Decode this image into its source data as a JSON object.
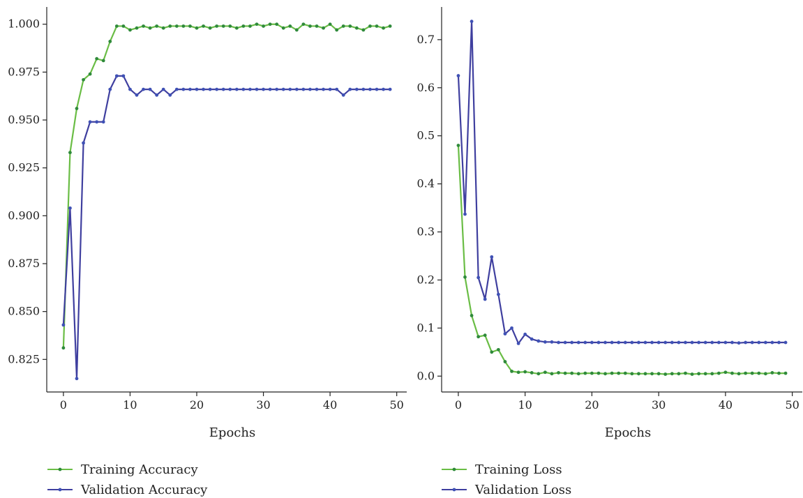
{
  "chart_data": [
    {
      "type": "line",
      "title": "",
      "xlabel": "Epochs",
      "ylabel": "",
      "xlim": [
        -2.5,
        51.5
      ],
      "ylim": [
        0.808,
        1.009
      ],
      "xticks": [
        0,
        10,
        20,
        30,
        40,
        50
      ],
      "yticks": [
        0.825,
        0.85,
        0.875,
        0.9,
        0.925,
        0.95,
        0.975,
        1.0
      ],
      "ytick_labels": [
        "0.825",
        "0.850",
        "0.875",
        "0.900",
        "0.925",
        "0.950",
        "0.975",
        "1.000"
      ],
      "grid": false,
      "legend": "bottom-left",
      "x": [
        0,
        1,
        2,
        3,
        4,
        5,
        6,
        7,
        8,
        9,
        10,
        11,
        12,
        13,
        14,
        15,
        16,
        17,
        18,
        19,
        20,
        21,
        22,
        23,
        24,
        25,
        26,
        27,
        28,
        29,
        30,
        31,
        32,
        33,
        34,
        35,
        36,
        37,
        38,
        39,
        40,
        41,
        42,
        43,
        44,
        45,
        46,
        47,
        48,
        49
      ],
      "series": [
        {
          "name": "Training Accuracy",
          "color": "#6abd45",
          "marker_color": "#2f8a3b",
          "values": [
            0.831,
            0.933,
            0.956,
            0.971,
            0.974,
            0.982,
            0.981,
            0.991,
            0.999,
            0.999,
            0.997,
            0.998,
            0.999,
            0.998,
            0.999,
            0.998,
            0.999,
            0.999,
            0.999,
            0.999,
            0.998,
            0.999,
            0.998,
            0.999,
            0.999,
            0.999,
            0.998,
            0.999,
            0.999,
            1.0,
            0.999,
            1.0,
            1.0,
            0.998,
            0.999,
            0.997,
            1.0,
            0.999,
            0.999,
            0.998,
            1.0,
            0.997,
            0.999,
            0.999,
            0.998,
            0.997,
            0.999,
            0.999,
            0.998,
            0.999
          ]
        },
        {
          "name": "Validation Accuracy",
          "color": "#3f3f9f",
          "marker_color": "#3f51b5",
          "values": [
            0.843,
            0.904,
            0.815,
            0.938,
            0.949,
            0.949,
            0.949,
            0.966,
            0.973,
            0.973,
            0.966,
            0.963,
            0.966,
            0.966,
            0.963,
            0.966,
            0.963,
            0.966,
            0.966,
            0.966,
            0.966,
            0.966,
            0.966,
            0.966,
            0.966,
            0.966,
            0.966,
            0.966,
            0.966,
            0.966,
            0.966,
            0.966,
            0.966,
            0.966,
            0.966,
            0.966,
            0.966,
            0.966,
            0.966,
            0.966,
            0.966,
            0.966,
            0.963,
            0.966,
            0.966,
            0.966,
            0.966,
            0.966,
            0.966,
            0.966
          ]
        }
      ]
    },
    {
      "type": "line",
      "title": "",
      "xlabel": "Epochs",
      "ylabel": "",
      "xlim": [
        -2.5,
        51.5
      ],
      "ylim": [
        -0.033,
        0.768
      ],
      "xticks": [
        0,
        10,
        20,
        30,
        40,
        50
      ],
      "yticks": [
        0.0,
        0.1,
        0.2,
        0.3,
        0.4,
        0.5,
        0.6,
        0.7
      ],
      "ytick_labels": [
        "0.0",
        "0.1",
        "0.2",
        "0.3",
        "0.4",
        "0.5",
        "0.6",
        "0.7"
      ],
      "grid": false,
      "legend": "bottom-left",
      "x": [
        0,
        1,
        2,
        3,
        4,
        5,
        6,
        7,
        8,
        9,
        10,
        11,
        12,
        13,
        14,
        15,
        16,
        17,
        18,
        19,
        20,
        21,
        22,
        23,
        24,
        25,
        26,
        27,
        28,
        29,
        30,
        31,
        32,
        33,
        34,
        35,
        36,
        37,
        38,
        39,
        40,
        41,
        42,
        43,
        44,
        45,
        46,
        47,
        48,
        49
      ],
      "series": [
        {
          "name": "Training Loss",
          "color": "#6abd45",
          "marker_color": "#2f8a3b",
          "values": [
            0.48,
            0.206,
            0.126,
            0.082,
            0.085,
            0.05,
            0.055,
            0.03,
            0.01,
            0.008,
            0.009,
            0.007,
            0.005,
            0.008,
            0.005,
            0.007,
            0.006,
            0.006,
            0.005,
            0.006,
            0.006,
            0.006,
            0.005,
            0.006,
            0.006,
            0.006,
            0.005,
            0.005,
            0.005,
            0.005,
            0.005,
            0.004,
            0.005,
            0.005,
            0.006,
            0.004,
            0.005,
            0.005,
            0.005,
            0.006,
            0.008,
            0.006,
            0.005,
            0.006,
            0.006,
            0.006,
            0.005,
            0.007,
            0.006,
            0.006
          ]
        },
        {
          "name": "Validation Loss",
          "color": "#3f3f9f",
          "marker_color": "#3f51b5",
          "values": [
            0.625,
            0.337,
            0.738,
            0.205,
            0.16,
            0.248,
            0.17,
            0.088,
            0.1,
            0.068,
            0.087,
            0.077,
            0.073,
            0.071,
            0.071,
            0.07,
            0.07,
            0.07,
            0.07,
            0.07,
            0.07,
            0.07,
            0.07,
            0.07,
            0.07,
            0.07,
            0.07,
            0.07,
            0.07,
            0.07,
            0.07,
            0.07,
            0.07,
            0.07,
            0.07,
            0.07,
            0.07,
            0.07,
            0.07,
            0.07,
            0.07,
            0.07,
            0.069,
            0.07,
            0.07,
            0.07,
            0.07,
            0.07,
            0.07,
            0.07
          ]
        }
      ]
    }
  ]
}
